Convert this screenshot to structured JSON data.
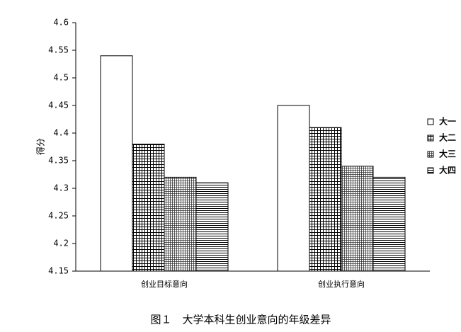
{
  "chart_data": {
    "type": "bar",
    "caption": "图１　大学本科生创业意向的年级差异",
    "y_label": "得分",
    "categories": [
      "创业目标意向",
      "创业执行意向"
    ],
    "series": [
      {
        "name": "大一",
        "color": "#ffffff",
        "pattern": "none",
        "values": [
          4.54,
          4.45
        ]
      },
      {
        "name": "大二",
        "color": "#555555",
        "pattern": "grid",
        "values": [
          4.38,
          4.41
        ]
      },
      {
        "name": "大三",
        "color": "#555555",
        "pattern": "fine-grid",
        "values": [
          4.32,
          4.34
        ]
      },
      {
        "name": "大四",
        "color": "#555555",
        "pattern": "horizontal",
        "values": [
          4.31,
          4.32
        ]
      }
    ],
    "ylim": [
      4.15,
      4.6
    ],
    "yticks": [
      4.15,
      4.2,
      4.25,
      4.3,
      4.35,
      4.4,
      4.45,
      4.5,
      4.55,
      4.6
    ],
    "grid": false,
    "legend": "right"
  }
}
